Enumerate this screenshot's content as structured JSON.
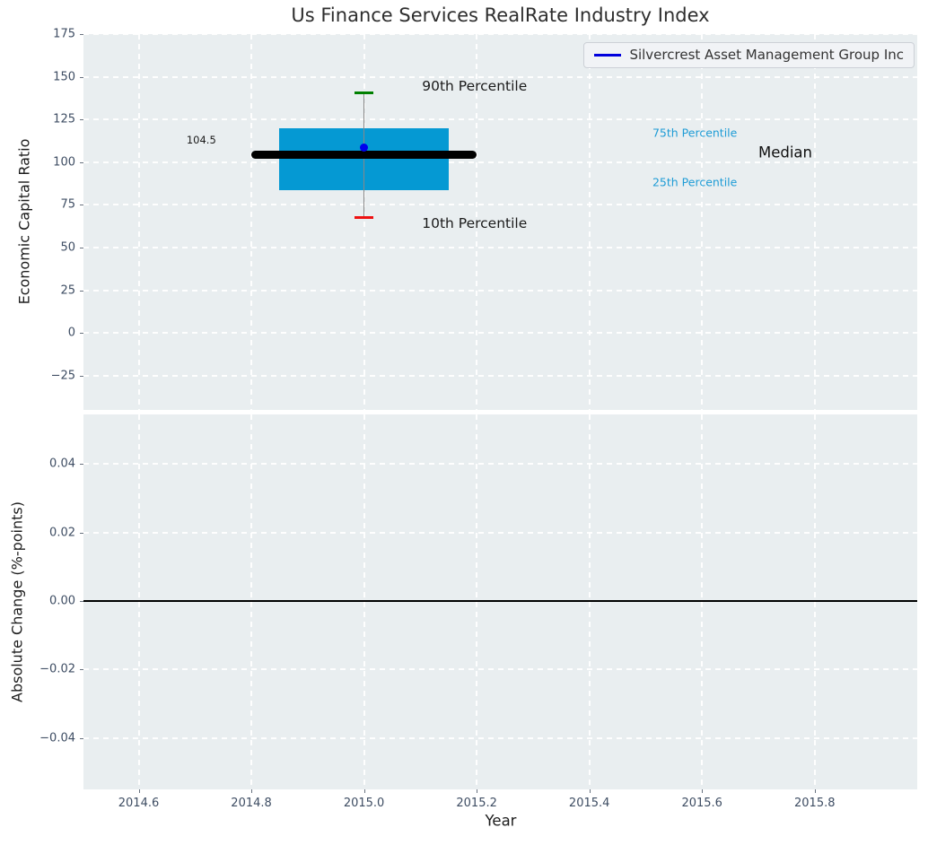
{
  "figure": {
    "colors": {
      "axes_background": "#e9eef0",
      "grid": "#ffffff",
      "tick_label": "#3e4d63"
    }
  },
  "chart_data": [
    {
      "type": "boxplot",
      "title": "Us Finance Services RealRate Industry Index",
      "ylabel": "Economic Capital Ratio",
      "xlabel": "Year",
      "grid": true,
      "xlim": [
        2014.502,
        2015.982
      ],
      "ylim": [
        -45,
        175
      ],
      "xticks": [
        2014.6,
        2014.8,
        2015.0,
        2015.2,
        2015.4,
        2015.6,
        2015.8
      ],
      "xtick_labels": [
        "2014.6",
        "2014.8",
        "2015.0",
        "2015.2",
        "2015.4",
        "2015.6",
        "2015.8"
      ],
      "yticks": [
        175,
        150,
        125,
        100,
        75,
        50,
        25,
        0,
        -25
      ],
      "ytick_labels": [
        "175",
        "150",
        "125",
        "100",
        "75",
        "50",
        "25",
        "0",
        "−25"
      ],
      "legend": {
        "position": "upper right",
        "entries": [
          {
            "label": "Silvercrest Asset Management Group Inc",
            "color": "#0000dd",
            "marker": "line"
          }
        ]
      },
      "box": {
        "x": 2015.0,
        "box_x_range": [
          2014.85,
          2015.15
        ],
        "median_x_range": [
          2014.8,
          2015.2
        ],
        "cap_x_range": [
          2014.9835,
          2015.0165
        ],
        "p10": 67.5,
        "p25": 83.5,
        "median": 104.5,
        "p75": 120,
        "p90": 140.5,
        "company_value": 108.8,
        "box_color": "#0599d3",
        "median_color": "#000000",
        "whisker_color": "#888888",
        "cap_top_color": "#008000",
        "cap_bottom_color": "#ee1111",
        "point_color": "#0000ee"
      },
      "annotations": [
        {
          "text": "104.5",
          "x": 2014.685,
          "y": 113,
          "color": "#1a1a1a",
          "size": 11.5,
          "name": "median-value-label"
        },
        {
          "text": "90th Percentile",
          "x": 2015.103,
          "y": 144.8,
          "color": "#1a1a1a",
          "size": 15.5,
          "name": "p90-label"
        },
        {
          "text": "10th Percentile",
          "x": 2015.103,
          "y": 64,
          "color": "#1a1a1a",
          "size": 15.5,
          "name": "p10-label"
        },
        {
          "text": "75th Percentile",
          "x": 2015.512,
          "y": 117.5,
          "color": "#1e9cd6",
          "size": 12.5,
          "name": "p75-label"
        },
        {
          "text": "25th Percentile",
          "x": 2015.512,
          "y": 88.6,
          "color": "#1e9cd6",
          "size": 12.5,
          "name": "p25-label"
        },
        {
          "text": "Median",
          "x": 2015.7,
          "y": 105.7,
          "color": "#111111",
          "size": 16.5,
          "name": "median-label"
        }
      ]
    },
    {
      "type": "line",
      "ylabel": "Absolute Change (%-points)",
      "xlabel": "Year",
      "grid": true,
      "xlim": [
        2014.502,
        2015.982
      ],
      "ylim": [
        -0.055,
        0.0545
      ],
      "xticks": [
        2014.6,
        2014.8,
        2015.0,
        2015.2,
        2015.4,
        2015.6,
        2015.8
      ],
      "xtick_labels": [
        "2014.6",
        "2014.8",
        "2015.0",
        "2015.2",
        "2015.4",
        "2015.6",
        "2015.8"
      ],
      "yticks": [
        0.04,
        0.02,
        0.0,
        -0.02,
        -0.04
      ],
      "ytick_labels": [
        "0.04",
        "0.02",
        "0.00",
        "−0.02",
        "−0.04"
      ],
      "zero_line": {
        "y": 0.0,
        "color": "#000000"
      },
      "series": []
    }
  ]
}
